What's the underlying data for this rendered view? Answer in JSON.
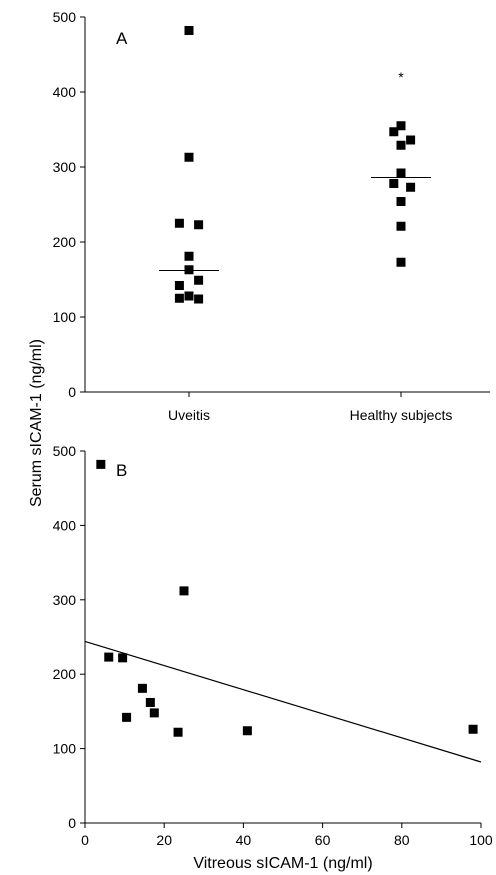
{
  "chart_data": [
    {
      "type": "scatter",
      "panel_label": "A",
      "categories": [
        "Uveitis",
        "Healthy subjects"
      ],
      "ylim": [
        0,
        500
      ],
      "yticks": [
        0,
        100,
        200,
        300,
        400,
        500
      ],
      "points": [
        {
          "category": "Uveitis",
          "offset": 0,
          "y": 482
        },
        {
          "category": "Uveitis",
          "offset": 0,
          "y": 313
        },
        {
          "category": "Uveitis",
          "offset": -0.4,
          "y": 225
        },
        {
          "category": "Uveitis",
          "offset": 0.4,
          "y": 223
        },
        {
          "category": "Uveitis",
          "offset": 0,
          "y": 181
        },
        {
          "category": "Uveitis",
          "offset": 0,
          "y": 163
        },
        {
          "category": "Uveitis",
          "offset": 0.4,
          "y": 149
        },
        {
          "category": "Uveitis",
          "offset": -0.4,
          "y": 142
        },
        {
          "category": "Uveitis",
          "offset": -0.4,
          "y": 125
        },
        {
          "category": "Uveitis",
          "offset": 0,
          "y": 128
        },
        {
          "category": "Uveitis",
          "offset": 0.4,
          "y": 124
        },
        {
          "category": "Healthy subjects",
          "offset": -0.3,
          "y": 347
        },
        {
          "category": "Healthy subjects",
          "offset": 0,
          "y": 355
        },
        {
          "category": "Healthy subjects",
          "offset": 0.4,
          "y": 336
        },
        {
          "category": "Healthy subjects",
          "offset": 0,
          "y": 329
        },
        {
          "category": "Healthy subjects",
          "offset": 0,
          "y": 292
        },
        {
          "category": "Healthy subjects",
          "offset": -0.3,
          "y": 278
        },
        {
          "category": "Healthy subjects",
          "offset": 0.4,
          "y": 273
        },
        {
          "category": "Healthy subjects",
          "offset": 0,
          "y": 254
        },
        {
          "category": "Healthy subjects",
          "offset": 0,
          "y": 221
        },
        {
          "category": "Healthy subjects",
          "offset": 0,
          "y": 173
        }
      ],
      "medians": [
        {
          "category": "Uveitis",
          "y": 162
        },
        {
          "category": "Healthy subjects",
          "y": 286
        }
      ],
      "annotation": {
        "category": "Healthy subjects",
        "text": "*",
        "y": 420
      }
    },
    {
      "type": "scatter",
      "panel_label": "B",
      "xlabel": "Vitreous sICAM-1 (ng/ml)",
      "xlim": [
        0,
        100
      ],
      "xticks": [
        0,
        20,
        40,
        60,
        80,
        100
      ],
      "ylim": [
        0,
        500
      ],
      "yticks": [
        0,
        100,
        200,
        300,
        400,
        500
      ],
      "points": [
        {
          "x": 4,
          "y": 482
        },
        {
          "x": 25,
          "y": 312
        },
        {
          "x": 6,
          "y": 223
        },
        {
          "x": 9.5,
          "y": 222
        },
        {
          "x": 14.5,
          "y": 181
        },
        {
          "x": 16.5,
          "y": 162
        },
        {
          "x": 17.5,
          "y": 148
        },
        {
          "x": 10.5,
          "y": 142
        },
        {
          "x": 23.5,
          "y": 122
        },
        {
          "x": 41,
          "y": 124
        },
        {
          "x": 98,
          "y": 126
        }
      ],
      "regression": {
        "x": [
          0,
          100
        ],
        "y": [
          244,
          82
        ]
      }
    }
  ],
  "shared_ylabel": "Serum sICAM-1 (ng/ml)"
}
